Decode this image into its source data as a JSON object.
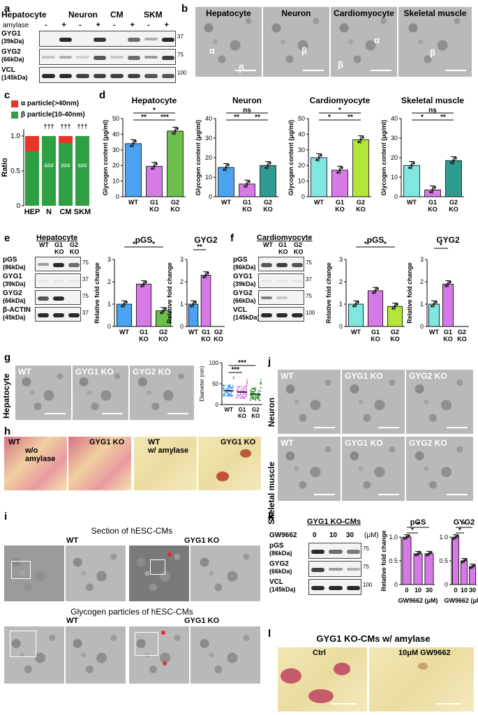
{
  "panels": {
    "a": {
      "label": "a",
      "groups": [
        "Hepatocyte",
        "Neuron",
        "CM",
        "SKM"
      ],
      "amylase_label": "amylase",
      "lanes": [
        "-",
        "+",
        "-",
        "+",
        "-",
        "+",
        "-",
        "+"
      ],
      "rows": [
        {
          "name": "GYG1",
          "kda": "(39kDa)",
          "mw": "37"
        },
        {
          "name": "GYG2",
          "kda": "(66kDa)",
          "mw": "75"
        },
        {
          "name": "VCL",
          "kda": "(145kDa)",
          "mw": "100"
        }
      ]
    },
    "b": {
      "label": "b",
      "titles": [
        "Hepatocyte",
        "Neuron",
        "Cardiomyocyte",
        "Skeletal muscle"
      ],
      "annotations": [
        "α",
        "β",
        "β",
        "β",
        "α",
        "β"
      ]
    },
    "c": {
      "label": "c",
      "legend": [
        "α particle(>40nm)",
        "β particle(10-40nm)"
      ],
      "ylabel": "Ratio",
      "markers_top": "†††",
      "markers_in": "###"
    },
    "d": {
      "label": "d",
      "ylabel": "Glycogen content (μg/ml)",
      "sig": {
        "hep": [
          "*",
          "**",
          "***"
        ],
        "neu": [
          "ns",
          "**",
          "**"
        ],
        "cm": [
          "*",
          "*",
          "**"
        ],
        "skm": [
          "ns",
          "*",
          "**"
        ]
      }
    },
    "e": {
      "label": "e",
      "title": "Hepatocyte",
      "lanes": [
        "WT",
        "G1 KO",
        "G2 KO"
      ],
      "rows": [
        {
          "name": "pGS",
          "kda": "(86kDa)",
          "mw": "75"
        },
        {
          "name": "GYG1",
          "kda": "(39kDa)",
          "mw": "37"
        },
        {
          "name": "GYG2",
          "kda": "(66kDa)",
          "mw": "75"
        },
        {
          "name": "β-ACTIN",
          "kda": "(45kDa)",
          "mw": "37"
        }
      ],
      "chart_titles": [
        "pGS",
        "GYG2"
      ],
      "ylabel": "Relative fold change",
      "sig_pgs": [
        "*",
        "*"
      ],
      "sig_gyg2": [
        "**"
      ]
    },
    "f": {
      "label": "f",
      "title": "Cardiomyocyte",
      "lanes": [
        "WT",
        "G1 KO",
        "G2 KO"
      ],
      "rows": [
        {
          "name": "pGS",
          "kda": "(86kDa)",
          "mw": "75"
        },
        {
          "name": "GYG1",
          "kda": "(39kDa)",
          "mw": "37"
        },
        {
          "name": "GYG2",
          "kda": "(66kDa)",
          "mw": "75"
        },
        {
          "name": "VCL",
          "kda": "(145kDa)",
          "mw": "100"
        }
      ],
      "chart_titles": [
        "pGS",
        "GYG2"
      ],
      "ylabel": "Relative fold change",
      "sig_pgs": [
        "*",
        "*"
      ],
      "sig_gyg2": [
        "*"
      ]
    },
    "g": {
      "label": "g",
      "side_label": "Hepatocyte",
      "titles": [
        "WT",
        "GYG1 KO",
        "GYG2 KO"
      ],
      "ylabel": "Diameter (nm)",
      "sig": [
        "***",
        "***"
      ]
    },
    "h": {
      "label": "h",
      "titles": [
        "WT",
        "GYG1 KO",
        "WT",
        "GYG1 KO"
      ],
      "captions": [
        "w/o amylase",
        "w/ amylase"
      ]
    },
    "i": {
      "label": "i",
      "section_title": "Section of hESC-CMs",
      "particles_title": "Glycogen particles of hESC-CMs",
      "wt": "WT",
      "ko": "GYG1 KO"
    },
    "j": {
      "label": "j",
      "titles": [
        "WT",
        "GYG1 KO",
        "GYG2 KO"
      ],
      "rows": [
        "Neuron",
        "Skeletal muscle"
      ]
    },
    "k": {
      "label": "k",
      "title": "GYG1 KO-CMs",
      "drug": "GW9662",
      "doses": [
        "0",
        "10",
        "30"
      ],
      "unit": "(μM)",
      "rows": [
        {
          "name": "pGS",
          "kda": "(86kDa)",
          "mw": "75"
        },
        {
          "name": "GYG2",
          "kda": "(66kDa)",
          "mw": "75"
        },
        {
          "name": "VCL",
          "kda": "(145kDa)",
          "mw": "100"
        }
      ],
      "chart_titles": [
        "pGS",
        "GYG2"
      ],
      "ylabel": "Relative fold change",
      "xlabel": "GW9662 (μM)",
      "sig": [
        "*",
        "*"
      ]
    },
    "l": {
      "label": "l",
      "title": "GYG1 KO-CMs w/ amylase",
      "captions": [
        "Ctrl",
        "10μM GW9662"
      ]
    }
  },
  "chart_data": [
    {
      "type": "bar",
      "id": "c",
      "categories": [
        "HEP",
        "N",
        "CM",
        "SKM"
      ],
      "series": [
        {
          "name": "α particle(>40nm)",
          "values": [
            0.22,
            0.0,
            0.1,
            0.0
          ],
          "color": "#e8352a"
        },
        {
          "name": "β particle(10-40nm)",
          "values": [
            0.78,
            1.0,
            0.9,
            1.0
          ],
          "color": "#2ea043"
        }
      ],
      "ylabel": "Ratio",
      "ylim": [
        0,
        1.1
      ],
      "yticks": [
        "0",
        "0.5",
        "1.0"
      ]
    },
    {
      "type": "bar",
      "id": "d-hep",
      "title": "Hepatocyte",
      "categories": [
        "WT",
        "G1 KO",
        "G2 KO"
      ],
      "values": [
        34,
        19.5,
        42
      ],
      "colors": [
        "#4aa3f0",
        "#d779e6",
        "#6cc04a"
      ],
      "ylim": [
        0,
        50
      ],
      "yticks": [
        "0",
        "10",
        "20",
        "30",
        "40",
        "50"
      ],
      "ylabel": "Glycogen content (μg/ml)"
    },
    {
      "type": "bar",
      "id": "d-neu",
      "title": "Neuron",
      "categories": [
        "WT",
        "G1 KO",
        "G2 KO"
      ],
      "values": [
        15,
        6.5,
        16
      ],
      "colors": [
        "#4aa3f0",
        "#d779e6",
        "#2f9b8f"
      ],
      "ylim": [
        0,
        40
      ],
      "yticks": [
        "0",
        "10",
        "20",
        "30",
        "40"
      ],
      "ylabel": "Glycogen content (μg/ml)"
    },
    {
      "type": "bar",
      "id": "d-cm",
      "title": "Cardiomyocyte",
      "categories": [
        "WT",
        "G1 KO",
        "G2 KO"
      ],
      "values": [
        25,
        17,
        36.5
      ],
      "colors": [
        "#7fe6e0",
        "#d779e6",
        "#b4e63a"
      ],
      "ylim": [
        0,
        50
      ],
      "yticks": [
        "0",
        "10",
        "20",
        "30",
        "40",
        "50"
      ],
      "ylabel": "Glycogen content (μg/ml)"
    },
    {
      "type": "bar",
      "id": "d-skm",
      "title": "Skeletal muscle",
      "categories": [
        "WT",
        "G1 KO",
        "G2 KO"
      ],
      "values": [
        16,
        3.5,
        18.5
      ],
      "colors": [
        "#7fe6e0",
        "#d779e6",
        "#2f9b8f"
      ],
      "ylim": [
        0,
        40
      ],
      "yticks": [
        "0",
        "10",
        "20",
        "30",
        "40"
      ],
      "ylabel": "Glycogen content (μg/ml)"
    },
    {
      "type": "bar",
      "id": "e-pgs",
      "title": "pGS",
      "categories": [
        "WT",
        "G1 KO",
        "G2 KO"
      ],
      "values": [
        1.0,
        1.9,
        0.7
      ],
      "colors": [
        "#4aa3f0",
        "#d779e6",
        "#6cc04a"
      ],
      "ylim": [
        0,
        3
      ],
      "yticks": [
        "0",
        "1",
        "2",
        "3"
      ],
      "ylabel": "Relative fold change"
    },
    {
      "type": "bar",
      "id": "e-gyg2",
      "title": "GYG2",
      "categories": [
        "WT",
        "G1 KO",
        "G2 KO"
      ],
      "values": [
        1.0,
        2.3,
        0.0
      ],
      "colors": [
        "#4aa3f0",
        "#d779e6",
        "#6cc04a"
      ],
      "ylim": [
        0,
        3
      ],
      "yticks": [
        "0",
        "1",
        "2",
        "3"
      ],
      "ylabel": "Relative fold change"
    },
    {
      "type": "bar",
      "id": "f-pgs",
      "title": "pGS",
      "categories": [
        "WT",
        "G1 KO",
        "G2 KO"
      ],
      "values": [
        1.0,
        1.6,
        0.9
      ],
      "colors": [
        "#7fe6e0",
        "#d779e6",
        "#b4e63a"
      ],
      "ylim": [
        0,
        3
      ],
      "yticks": [
        "0",
        "1",
        "2",
        "3"
      ],
      "ylabel": "Relative fold change"
    },
    {
      "type": "bar",
      "id": "f-gyg2",
      "title": "GYG2",
      "categories": [
        "WT",
        "G1 KO",
        "G2 KO"
      ],
      "values": [
        1.0,
        1.9,
        0.0
      ],
      "colors": [
        "#7fe6e0",
        "#d779e6",
        "#b4e63a"
      ],
      "ylim": [
        0,
        3
      ],
      "yticks": [
        "0",
        "1",
        "2",
        "3"
      ],
      "ylabel": "Relative fold change"
    },
    {
      "type": "scatter",
      "id": "g-dist",
      "categories": [
        "WT",
        "G1 KO",
        "G2 KO"
      ],
      "medians": [
        33,
        30,
        25
      ],
      "colors": [
        "#4aa3f0",
        "#d779e6",
        "#3a9a3a"
      ],
      "ylim": [
        0,
        100
      ],
      "yticks": [
        "0",
        "50",
        "100"
      ],
      "ylabel": "Diameter (nm)"
    },
    {
      "type": "bar",
      "id": "k-pgs",
      "title": "pGS",
      "categories": [
        "0",
        "10",
        "30"
      ],
      "values": [
        1.0,
        0.65,
        0.65
      ],
      "colors": [
        "#d779e6",
        "#d779e6",
        "#d779e6"
      ],
      "ylim": [
        0,
        1.0
      ],
      "yticks": [
        "0",
        "0.5",
        "1.0"
      ],
      "ylabel": "Relative fold change",
      "xlabel": "GW9662 (μM)"
    },
    {
      "type": "bar",
      "id": "k-gyg2",
      "title": "GYG2",
      "categories": [
        "0",
        "10",
        "30"
      ],
      "values": [
        1.0,
        0.5,
        0.38
      ],
      "colors": [
        "#d779e6",
        "#d779e6",
        "#d779e6"
      ],
      "ylim": [
        0,
        1.0
      ],
      "yticks": [
        "0",
        "0.5",
        "1.0"
      ],
      "ylabel": "Relative fold change",
      "xlabel": "GW9662 (μM)"
    }
  ]
}
